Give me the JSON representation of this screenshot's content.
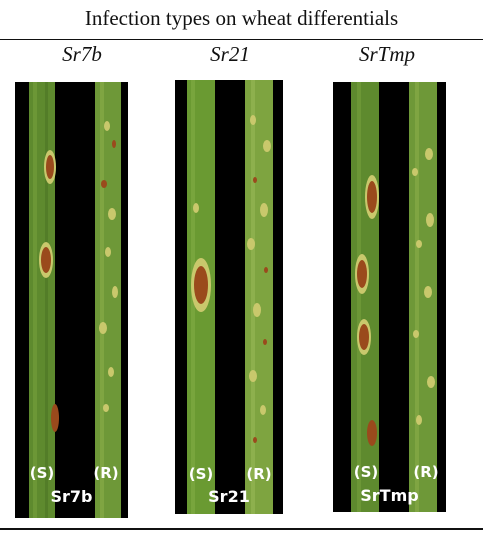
{
  "title": "Infection types on wheat differentials",
  "columns": [
    {
      "header": "Sr7b",
      "left": "(S)",
      "right": "(R)",
      "caption": "Sr7b"
    },
    {
      "header": "Sr21",
      "left": "(S)",
      "right": "(R)",
      "caption": "Sr21"
    },
    {
      "header": "SrTmp",
      "left": "(S)",
      "right": "(R)",
      "caption": "SrTmp"
    }
  ],
  "colors": {
    "background": "#000000",
    "leaf": "#5e8a2e",
    "leaf_light": "#93b24f",
    "pustule": "#9a4a1c",
    "chlorosis": "#c9c86c"
  }
}
